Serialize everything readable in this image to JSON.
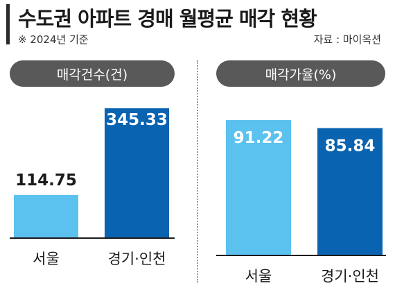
{
  "title": "수도권 아파트 경매 월평균 매각 현황",
  "note": "※ 2024년 기준",
  "source": "자료 : 마이옥션",
  "colors": {
    "seoul": "#5BC2F0",
    "gyeonggi_incheon": "#0A63B0",
    "pill": "#595959",
    "baseline": "#1a1a1a"
  },
  "chart_data": [
    {
      "type": "bar",
      "title": "매각건수(건)",
      "categories": [
        "서울",
        "경기·인천"
      ],
      "values": [
        114.75,
        345.33
      ],
      "value_labels": [
        "114.75",
        "345.33"
      ],
      "ylim": [
        0,
        345.33
      ]
    },
    {
      "type": "bar",
      "title": "매각가율(%)",
      "categories": [
        "서울",
        "경기·인천"
      ],
      "values": [
        91.22,
        85.84
      ],
      "value_labels": [
        "91.22",
        "85.84"
      ],
      "ylim": [
        0,
        91.22
      ]
    }
  ]
}
